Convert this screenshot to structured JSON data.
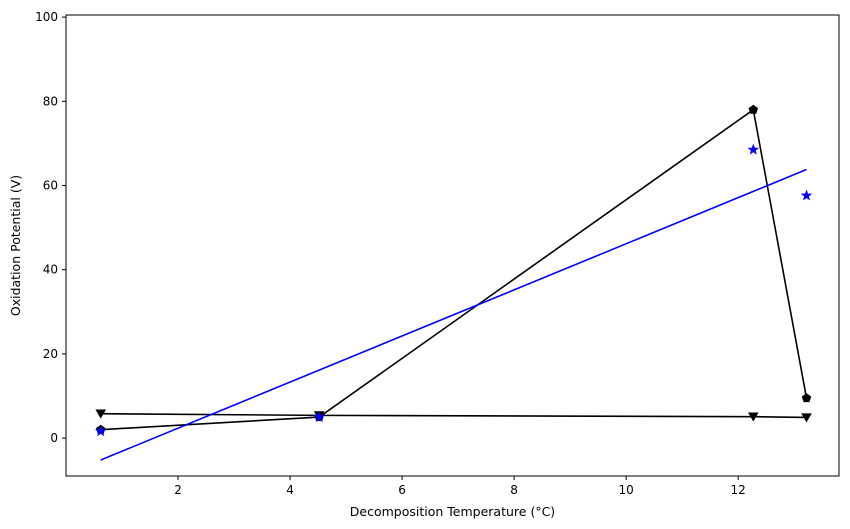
{
  "chart_data": {
    "type": "line",
    "title": "",
    "xlabel": "Decomposition Temperature (°C)",
    "ylabel": "Oxidation Potential (V)",
    "xlim": [
      0.0,
      13.8
    ],
    "ylim": [
      -9,
      100.5
    ],
    "xticks": [
      2,
      4,
      6,
      8,
      10,
      12
    ],
    "yticks": [
      0,
      20,
      40,
      60,
      80,
      100
    ],
    "grid": false,
    "legend": "none",
    "series": [
      {
        "kind": "line",
        "marker": "pentagon",
        "color": "#000000",
        "points": [
          [
            0.62,
            2.0
          ],
          [
            4.52,
            5.0
          ],
          [
            12.27,
            78.0
          ],
          [
            13.22,
            9.5
          ]
        ]
      },
      {
        "kind": "line",
        "marker": "triangle-down",
        "color": "#000000",
        "points": [
          [
            0.62,
            5.8
          ],
          [
            4.52,
            5.4
          ],
          [
            12.27,
            5.1
          ],
          [
            13.22,
            4.9
          ]
        ]
      },
      {
        "kind": "scatter",
        "marker": "star",
        "color": "#0000ff",
        "points": [
          [
            0.62,
            1.6
          ],
          [
            4.52,
            5.0
          ],
          [
            12.27,
            68.5
          ],
          [
            13.22,
            57.6
          ]
        ]
      },
      {
        "kind": "line",
        "marker": "none",
        "color": "#0000ff",
        "points": [
          [
            0.62,
            -5.2
          ],
          [
            13.22,
            63.8
          ]
        ]
      }
    ]
  }
}
